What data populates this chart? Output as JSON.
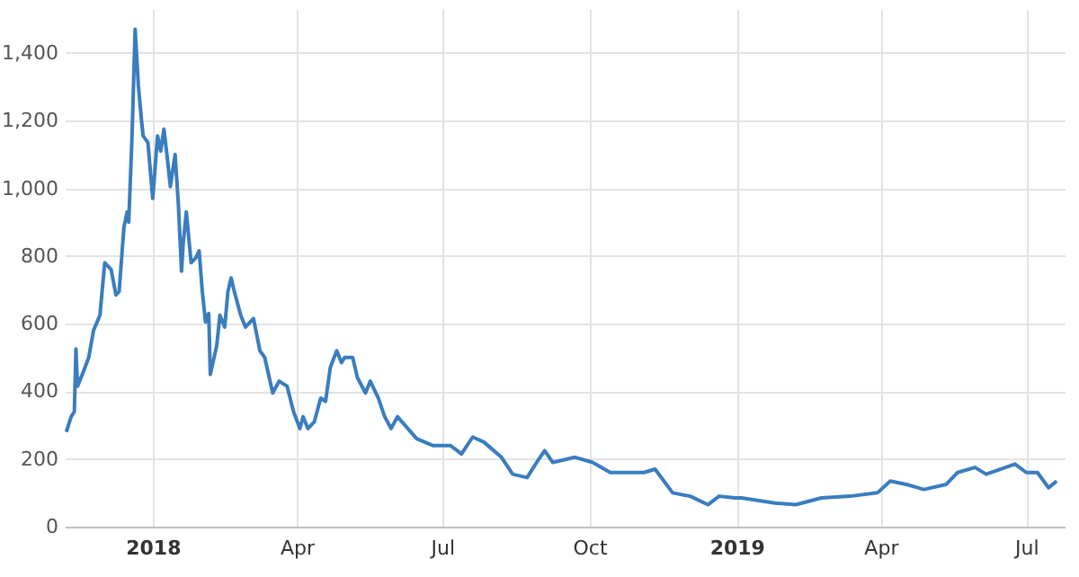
{
  "chart_data": {
    "type": "line",
    "x": [
      "2017-11-08",
      "2017-11-11",
      "2017-11-13",
      "2017-11-14",
      "2017-11-15",
      "2017-11-18",
      "2017-11-22",
      "2017-11-25",
      "2017-11-29",
      "2017-12-02",
      "2017-12-06",
      "2017-12-09",
      "2017-12-11",
      "2017-12-14",
      "2017-12-16",
      "2017-12-17",
      "2017-12-19",
      "2017-12-21",
      "2017-12-23",
      "2017-12-25",
      "2017-12-26",
      "2017-12-29",
      "2018-01-01",
      "2018-01-02",
      "2018-01-04",
      "2018-01-06",
      "2018-01-08",
      "2018-01-10",
      "2018-01-12",
      "2018-01-15",
      "2018-01-17",
      "2018-01-19",
      "2018-01-20",
      "2018-01-22",
      "2018-01-25",
      "2018-01-28",
      "2018-01-30",
      "2018-02-01",
      "2018-02-03",
      "2018-02-05",
      "2018-02-06",
      "2018-02-10",
      "2018-02-12",
      "2018-02-15",
      "2018-02-17",
      "2018-02-19",
      "2018-02-21",
      "2018-02-25",
      "2018-02-28",
      "2018-03-05",
      "2018-03-09",
      "2018-03-12",
      "2018-03-17",
      "2018-03-21",
      "2018-03-26",
      "2018-03-30",
      "2018-04-03",
      "2018-04-05",
      "2018-04-08",
      "2018-04-12",
      "2018-04-16",
      "2018-04-19",
      "2018-04-22",
      "2018-04-26",
      "2018-04-29",
      "2018-05-01",
      "2018-05-06",
      "2018-05-09",
      "2018-05-14",
      "2018-05-17",
      "2018-05-22",
      "2018-05-26",
      "2018-05-30",
      "2018-06-03",
      "2018-06-15",
      "2018-06-25",
      "2018-07-06",
      "2018-07-13",
      "2018-07-20",
      "2018-07-27",
      "2018-08-07",
      "2018-08-14",
      "2018-08-23",
      "2018-08-29",
      "2018-09-03",
      "2018-09-08",
      "2018-09-22",
      "2018-10-03",
      "2018-10-14",
      "2018-11-04",
      "2018-11-11",
      "2018-11-22",
      "2018-12-03",
      "2018-12-14",
      "2018-12-21",
      "2018-12-31",
      "2019-01-04",
      "2019-01-25",
      "2019-02-07",
      "2019-02-23",
      "2019-03-13",
      "2019-03-30",
      "2019-04-07",
      "2019-04-17",
      "2019-04-28",
      "2019-05-12",
      "2019-05-19",
      "2019-05-30",
      "2019-06-06",
      "2019-06-24",
      "2019-07-01",
      "2019-07-08",
      "2019-07-15",
      "2019-07-20"
    ],
    "series": [
      {
        "color": "#3a7dbf",
        "values": [
          280,
          325,
          340,
          525,
          415,
          450,
          500,
          580,
          625,
          780,
          760,
          685,
          695,
          885,
          930,
          900,
          1145,
          1470,
          1305,
          1200,
          1155,
          1135,
          970,
          1030,
          1155,
          1110,
          1175,
          1095,
          1005,
          1100,
          955,
          755,
          835,
          930,
          780,
          795,
          815,
          695,
          605,
          630,
          450,
          535,
          625,
          590,
          695,
          735,
          695,
          625,
          590,
          615,
          520,
          500,
          395,
          430,
          415,
          340,
          290,
          325,
          290,
          310,
          380,
          370,
          470,
          520,
          485,
          500,
          500,
          440,
          395,
          430,
          380,
          325,
          290,
          325,
          260,
          240,
          240,
          215,
          265,
          250,
          205,
          155,
          145,
          190,
          225,
          190,
          205,
          190,
          160,
          160,
          170,
          100,
          90,
          65,
          90,
          85,
          85,
          70,
          65,
          85,
          90,
          100,
          135,
          125,
          110,
          125,
          160,
          175,
          155,
          185,
          160,
          160,
          115,
          135
        ]
      }
    ],
    "xlim": [
      "2017-11-07",
      "2019-07-25"
    ],
    "xticks": [
      {
        "value": "2018-01-01",
        "label": "2018"
      },
      {
        "value": "2018-04-01",
        "label": "Apr"
      },
      {
        "value": "2018-07-01",
        "label": "Jul"
      },
      {
        "value": "2018-10-01",
        "label": "Oct"
      },
      {
        "value": "2019-01-01",
        "label": "2019"
      },
      {
        "value": "2019-04-01",
        "label": "Apr"
      },
      {
        "value": "2019-07-01",
        "label": "Jul"
      }
    ],
    "ylim": [
      0,
      1530
    ],
    "yticks": [
      0,
      200,
      400,
      600,
      800,
      {
        "value": 1000,
        "label": "1,000"
      },
      {
        "value": 1200,
        "label": "1,200"
      },
      {
        "value": 1400,
        "label": "1,400"
      }
    ],
    "grid": true
  }
}
